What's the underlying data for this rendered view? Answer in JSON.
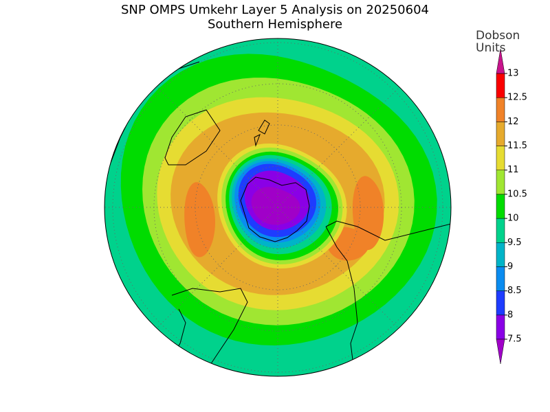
{
  "title": "SNP OMPS Umkehr Layer 5 Analysis on 20250604",
  "subtitle": "Southern Hemisphere",
  "colorbar": {
    "title_lines": [
      "Dobson",
      "Units"
    ],
    "ticks": [
      7.5,
      8,
      8.5,
      9,
      9.5,
      10,
      10.5,
      11,
      11.5,
      12,
      12.5,
      13
    ],
    "colors": [
      "#8a00e6",
      "#1e3cff",
      "#0a8cf0",
      "#00b4c8",
      "#00d28c",
      "#00dc00",
      "#a0e632",
      "#e6dc32",
      "#e6aa2d",
      "#f08228",
      "#fa0000"
    ],
    "under_color": "#a000c8",
    "over_color": "#c8148c"
  }
}
